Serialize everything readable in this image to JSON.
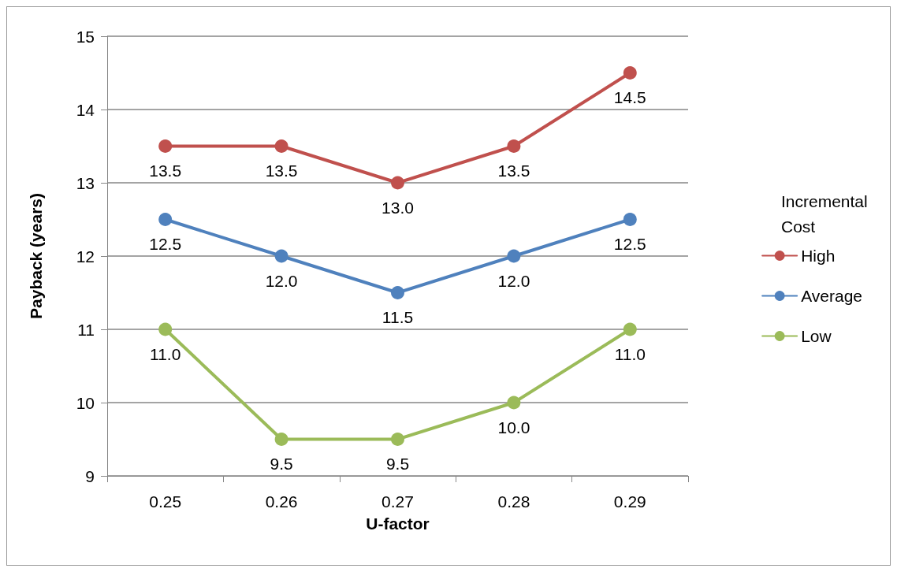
{
  "chart_data": {
    "type": "line",
    "xlabel": "U-factor",
    "ylabel": "Payback (years)",
    "legend_title": "Incremental Cost",
    "categories": [
      "0.25",
      "0.26",
      "0.27",
      "0.28",
      "0.29"
    ],
    "series": [
      {
        "name": "High",
        "color": "#c0504d",
        "values": [
          13.5,
          13.5,
          13.0,
          13.5,
          14.5
        ],
        "value_labels": [
          "13.5",
          "13.5",
          "13.0",
          "13.5",
          "14.5"
        ]
      },
      {
        "name": "Average",
        "color": "#4f81bd",
        "values": [
          12.5,
          12.0,
          11.5,
          12.0,
          12.5
        ],
        "value_labels": [
          "12.5",
          "12.0",
          "11.5",
          "12.0",
          "12.5"
        ]
      },
      {
        "name": "Low",
        "color": "#9bbb59",
        "values": [
          11.0,
          9.5,
          9.5,
          10.0,
          11.0
        ],
        "value_labels": [
          "11.0",
          "9.5",
          "9.5",
          "10.0",
          "11.0"
        ]
      }
    ],
    "ylim": [
      9,
      15
    ],
    "yticks": [
      9,
      10,
      11,
      12,
      13,
      14,
      15
    ],
    "grid": "y",
    "legend": "right",
    "marker": "circle",
    "line_style": "solid"
  }
}
